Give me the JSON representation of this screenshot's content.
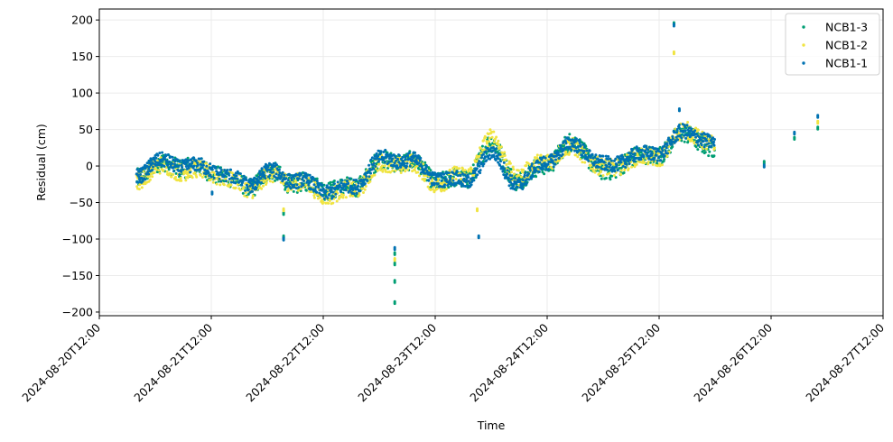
{
  "chart_data": {
    "type": "scatter",
    "xlabel": "Time",
    "ylabel": "Residual (cm)",
    "x_ticks": [
      "2024-08-20T12:00",
      "2024-08-21T12:00",
      "2024-08-22T12:00",
      "2024-08-23T12:00",
      "2024-08-24T12:00",
      "2024-08-25T12:00",
      "2024-08-26T12:00",
      "2024-08-27T12:00"
    ],
    "xlim": [
      "2024-08-20T12:00",
      "2024-08-27T12:00"
    ],
    "y_ticks": [
      -200,
      -150,
      -100,
      -50,
      0,
      50,
      100,
      150,
      200
    ],
    "ylim": [
      -205,
      215
    ],
    "grid": true,
    "legend_position": "top-right",
    "series": [
      {
        "name": "NCB1-3",
        "color": "#009e73",
        "trend": [
          [
            "2024-08-20T20:00",
            -15
          ],
          [
            "2024-08-21T00:00",
            2
          ],
          [
            "2024-08-21T06:00",
            0
          ],
          [
            "2024-08-21T12:00",
            -8
          ],
          [
            "2024-08-21T20:00",
            -28
          ],
          [
            "2024-08-22T00:00",
            -10
          ],
          [
            "2024-08-22T06:00",
            -22
          ],
          [
            "2024-08-22T12:00",
            -30
          ],
          [
            "2024-08-22T18:00",
            -32
          ],
          [
            "2024-08-23T00:00",
            5
          ],
          [
            "2024-08-23T06:00",
            8
          ],
          [
            "2024-08-23T12:00",
            -18
          ],
          [
            "2024-08-23T18:00",
            -20
          ],
          [
            "2024-08-24T00:00",
            28
          ],
          [
            "2024-08-24T06:00",
            -20
          ],
          [
            "2024-08-24T12:00",
            5
          ],
          [
            "2024-08-24T18:00",
            32
          ],
          [
            "2024-08-25T00:00",
            -10
          ],
          [
            "2024-08-25T06:00",
            10
          ],
          [
            "2024-08-25T12:00",
            18
          ],
          [
            "2024-08-25T18:00",
            45
          ],
          [
            "2024-08-26T00:00",
            20
          ]
        ],
        "outliers": [
          [
            "2024-08-23T03:20",
            -187
          ],
          [
            "2024-08-23T03:20",
            -158
          ],
          [
            "2024-08-23T03:20",
            -134
          ],
          [
            "2024-08-23T03:20",
            -120
          ],
          [
            "2024-08-22T03:30",
            -97
          ],
          [
            "2024-08-22T03:30",
            -65
          ],
          [
            "2024-08-25T15:10",
            195
          ],
          [
            "2024-08-26T22:00",
            52
          ],
          [
            "2024-08-26T10:30",
            5
          ],
          [
            "2024-08-26T17:00",
            38
          ]
        ]
      },
      {
        "name": "NCB1-2",
        "color": "#f0e442",
        "trend": [
          [
            "2024-08-20T20:00",
            -18
          ],
          [
            "2024-08-21T00:00",
            -2
          ],
          [
            "2024-08-21T06:00",
            -5
          ],
          [
            "2024-08-21T12:00",
            -10
          ],
          [
            "2024-08-21T20:00",
            -30
          ],
          [
            "2024-08-22T00:00",
            -15
          ],
          [
            "2024-08-22T06:00",
            -20
          ],
          [
            "2024-08-22T12:00",
            -38
          ],
          [
            "2024-08-22T18:00",
            -35
          ],
          [
            "2024-08-23T00:00",
            0
          ],
          [
            "2024-08-23T06:00",
            5
          ],
          [
            "2024-08-23T12:00",
            -22
          ],
          [
            "2024-08-23T18:00",
            -15
          ],
          [
            "2024-08-24T00:00",
            35
          ],
          [
            "2024-08-24T06:00",
            -15
          ],
          [
            "2024-08-24T12:00",
            10
          ],
          [
            "2024-08-24T18:00",
            25
          ],
          [
            "2024-08-25T00:00",
            -5
          ],
          [
            "2024-08-25T06:00",
            8
          ],
          [
            "2024-08-25T12:00",
            15
          ],
          [
            "2024-08-25T18:00",
            50
          ],
          [
            "2024-08-26T00:00",
            25
          ]
        ],
        "outliers": [
          [
            "2024-08-23T03:20",
            -128
          ],
          [
            "2024-08-22T03:30",
            -60
          ],
          [
            "2024-08-25T15:10",
            155
          ],
          [
            "2024-08-23T21:00",
            -60
          ],
          [
            "2024-08-26T22:00",
            60
          ]
        ]
      },
      {
        "name": "NCB1-1",
        "color": "#0072b2",
        "trend": [
          [
            "2024-08-20T20:00",
            -12
          ],
          [
            "2024-08-21T00:00",
            5
          ],
          [
            "2024-08-21T06:00",
            2
          ],
          [
            "2024-08-21T12:00",
            -5
          ],
          [
            "2024-08-21T20:00",
            -25
          ],
          [
            "2024-08-22T00:00",
            -8
          ],
          [
            "2024-08-22T06:00",
            -18
          ],
          [
            "2024-08-22T12:00",
            -33
          ],
          [
            "2024-08-22T18:00",
            -30
          ],
          [
            "2024-08-23T00:00",
            8
          ],
          [
            "2024-08-23T06:00",
            10
          ],
          [
            "2024-08-23T12:00",
            -15
          ],
          [
            "2024-08-23T18:00",
            -22
          ],
          [
            "2024-08-24T00:00",
            15
          ],
          [
            "2024-08-24T06:00",
            -25
          ],
          [
            "2024-08-24T12:00",
            8
          ],
          [
            "2024-08-24T18:00",
            30
          ],
          [
            "2024-08-25T00:00",
            0
          ],
          [
            "2024-08-25T06:00",
            12
          ],
          [
            "2024-08-25T12:00",
            20
          ],
          [
            "2024-08-25T18:00",
            48
          ],
          [
            "2024-08-26T00:00",
            28
          ]
        ],
        "outliers": [
          [
            "2024-08-23T03:20",
            -113
          ],
          [
            "2024-08-22T03:30",
            -100
          ],
          [
            "2024-08-23T21:20",
            -97
          ],
          [
            "2024-08-25T15:10",
            193
          ],
          [
            "2024-08-25T16:20",
            77
          ],
          [
            "2024-08-26T10:30",
            0
          ],
          [
            "2024-08-26T17:00",
            45
          ],
          [
            "2024-08-26T22:00",
            68
          ],
          [
            "2024-08-21T12:10",
            -37
          ]
        ]
      }
    ]
  }
}
